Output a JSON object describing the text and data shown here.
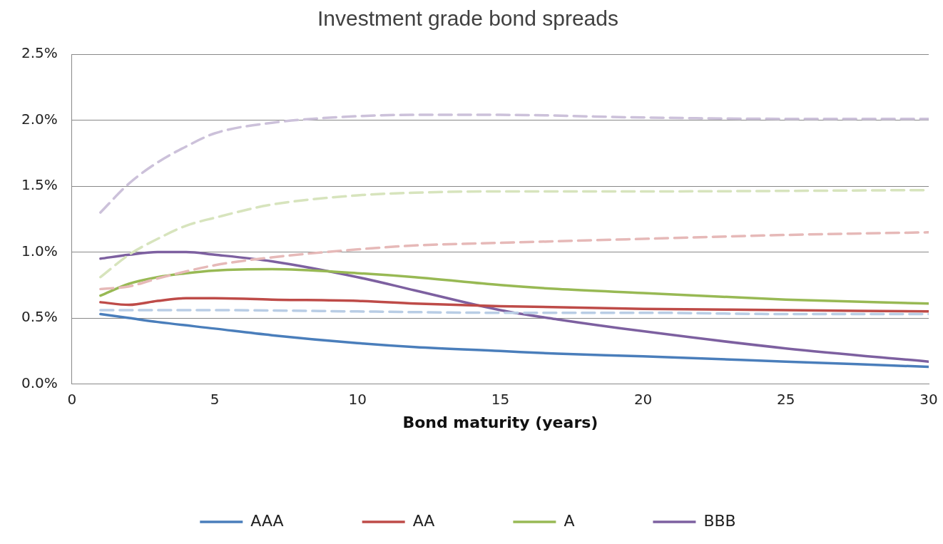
{
  "chart_data": {
    "type": "line",
    "title": "Investment grade bond spreads",
    "xlabel": "Bond maturity (years)",
    "xlim": [
      0,
      30
    ],
    "xticks": [
      0,
      5,
      10,
      15,
      20,
      25,
      30
    ],
    "ylim": [
      0,
      2.5
    ],
    "yticks": [
      {
        "value": 0,
        "label": "0.0%"
      },
      {
        "value": 0.5,
        "label": "0.5%"
      },
      {
        "value": 1,
        "label": "1.0%"
      },
      {
        "value": 1.5,
        "label": "1.5%"
      },
      {
        "value": 2,
        "label": "2.0%"
      },
      {
        "value": 2.5,
        "label": "2.5%"
      }
    ],
    "grid": "y",
    "legend": "bottom",
    "marker": "none",
    "series": [
      {
        "color": "#b9cde5",
        "line_style": "dashed",
        "x": [
          1,
          5,
          10,
          15,
          20,
          25,
          30
        ],
        "values": [
          0.56,
          0.56,
          0.55,
          0.54,
          0.54,
          0.53,
          0.53
        ]
      },
      {
        "color": "#e6b9b8",
        "line_style": "dashed",
        "x": [
          1,
          2,
          3,
          5,
          7,
          10,
          12,
          15,
          20,
          25,
          30
        ],
        "values": [
          0.72,
          0.74,
          0.8,
          0.9,
          0.96,
          1.02,
          1.05,
          1.07,
          1.1,
          1.13,
          1.15
        ]
      },
      {
        "color": "#d7e4bd",
        "line_style": "dashed",
        "x": [
          1,
          2,
          3,
          4,
          5,
          7,
          10,
          12,
          15,
          20,
          30
        ],
        "values": [
          0.81,
          0.98,
          1.1,
          1.2,
          1.26,
          1.36,
          1.43,
          1.45,
          1.46,
          1.46,
          1.47
        ]
      },
      {
        "color": "#ccc1da",
        "line_style": "dashed",
        "x": [
          1,
          2,
          3,
          4,
          5,
          7,
          10,
          12,
          15,
          20,
          25,
          30
        ],
        "values": [
          1.3,
          1.52,
          1.68,
          1.8,
          1.9,
          1.98,
          2.03,
          2.04,
          2.04,
          2.02,
          2.01,
          2.01
        ]
      },
      {
        "name": "AAA",
        "color": "#4a7ebb",
        "line_style": "solid",
        "x": [
          1,
          2,
          3,
          5,
          7,
          10,
          12,
          15,
          17,
          20,
          25,
          30
        ],
        "values": [
          0.53,
          0.5,
          0.47,
          0.42,
          0.37,
          0.31,
          0.28,
          0.25,
          0.23,
          0.21,
          0.17,
          0.13
        ]
      },
      {
        "name": "AA",
        "color": "#be4b48",
        "line_style": "solid",
        "x": [
          1,
          2,
          3,
          4,
          5,
          7,
          10,
          12,
          15,
          20,
          25,
          30
        ],
        "values": [
          0.62,
          0.6,
          0.63,
          0.65,
          0.65,
          0.64,
          0.63,
          0.61,
          0.59,
          0.57,
          0.56,
          0.55
        ]
      },
      {
        "name": "A",
        "color": "#98b954",
        "line_style": "solid",
        "x": [
          1,
          2,
          3,
          4,
          5,
          7,
          10,
          12,
          15,
          17,
          20,
          25,
          30
        ],
        "values": [
          0.67,
          0.76,
          0.81,
          0.84,
          0.86,
          0.87,
          0.84,
          0.81,
          0.75,
          0.72,
          0.69,
          0.64,
          0.61
        ]
      },
      {
        "name": "BBB",
        "color": "#7d60a0",
        "line_style": "solid",
        "x": [
          1,
          2,
          3,
          4,
          5,
          7,
          10,
          12,
          15,
          17,
          20,
          25,
          30
        ],
        "values": [
          0.95,
          0.98,
          1.0,
          1.0,
          0.98,
          0.93,
          0.81,
          0.71,
          0.56,
          0.49,
          0.4,
          0.27,
          0.17
        ]
      }
    ]
  }
}
